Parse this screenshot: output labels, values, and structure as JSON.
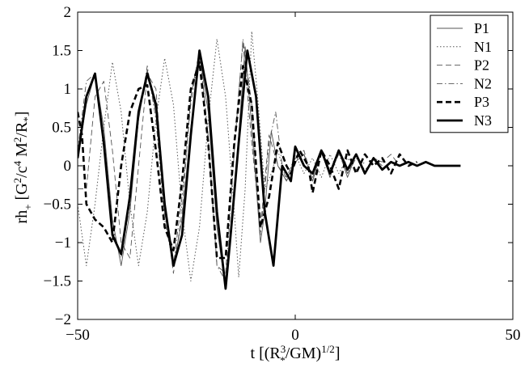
{
  "chart_data": {
    "type": "line",
    "xlabel": "t [(R*^3/GM)^{1/2}]",
    "ylabel": "rh+ [G^2/c^4 M^2/R*]",
    "xlim": [
      -50,
      50
    ],
    "ylim": [
      -2,
      2
    ],
    "x_ticks": [
      -50,
      0,
      50
    ],
    "y_ticks": [
      -2,
      -1.5,
      -1,
      -0.5,
      0,
      0.5,
      1,
      1.5,
      2
    ],
    "x_tick_labels": [
      "−50",
      "0",
      "50"
    ],
    "y_tick_labels": [
      "−2",
      "−1.5",
      "−1",
      "−0.5",
      "0",
      "0.5",
      "1",
      "1.5",
      "2"
    ],
    "grid": false,
    "legend_position": "top-right",
    "series": [
      {
        "name": "P1",
        "style": "thin-solid",
        "points": [
          [
            -50,
            0.1
          ],
          [
            -48,
            0.8
          ],
          [
            -46,
            1.2
          ],
          [
            -44,
            0.5
          ],
          [
            -42,
            -0.7
          ],
          [
            -40,
            -1.3
          ],
          [
            -38,
            -0.6
          ],
          [
            -36,
            0.6
          ],
          [
            -34,
            1.25
          ],
          [
            -32,
            0.7
          ],
          [
            -30,
            -0.6
          ],
          [
            -28,
            -1.3
          ],
          [
            -26,
            -0.7
          ],
          [
            -24,
            0.5
          ],
          [
            -22,
            1.45
          ],
          [
            -20,
            0.7
          ],
          [
            -18,
            -0.8
          ],
          [
            -16,
            -1.6
          ],
          [
            -15,
            -1.0
          ],
          [
            -13,
            0.4
          ],
          [
            -11.5,
            1.55
          ],
          [
            -10,
            0.5
          ],
          [
            -8,
            -1.0
          ],
          [
            -7,
            -0.6
          ],
          [
            -5.5,
            0.45
          ],
          [
            -4,
            0.0
          ],
          [
            -2,
            -0.2
          ],
          [
            0,
            0.05
          ],
          [
            2,
            0.15
          ],
          [
            4,
            -0.2
          ],
          [
            6,
            0.2
          ],
          [
            8,
            -0.15
          ],
          [
            10,
            0.2
          ],
          [
            12,
            -0.15
          ],
          [
            14,
            0.15
          ],
          [
            16,
            -0.1
          ],
          [
            18,
            0.1
          ],
          [
            20,
            0.0
          ]
        ]
      },
      {
        "name": "N1",
        "style": "dotted",
        "points": [
          [
            -50,
            -0.5
          ],
          [
            -48,
            -1.3
          ],
          [
            -46,
            -0.5
          ],
          [
            -44,
            0.5
          ],
          [
            -42,
            1.35
          ],
          [
            -40,
            0.7
          ],
          [
            -38,
            -0.5
          ],
          [
            -36,
            -1.3
          ],
          [
            -34,
            -0.6
          ],
          [
            -32,
            0.6
          ],
          [
            -30,
            1.4
          ],
          [
            -28,
            0.8
          ],
          [
            -26,
            -0.6
          ],
          [
            -24,
            -1.5
          ],
          [
            -22,
            -0.8
          ],
          [
            -20,
            0.6
          ],
          [
            -18,
            1.65
          ],
          [
            -16,
            0.9
          ],
          [
            -14,
            -0.6
          ],
          [
            -13,
            -1.45
          ],
          [
            -11.5,
            -0.3
          ],
          [
            -10,
            1.75
          ],
          [
            -8.5,
            0.8
          ],
          [
            -7,
            -0.3
          ],
          [
            -5.5,
            -0.1
          ],
          [
            -4,
            0.2
          ],
          [
            -2,
            -0.2
          ],
          [
            0,
            0.15
          ],
          [
            2,
            -0.1
          ],
          [
            4,
            0.1
          ],
          [
            6,
            -0.15
          ],
          [
            8,
            0.15
          ],
          [
            10,
            -0.1
          ],
          [
            12,
            0.1
          ],
          [
            14,
            -0.05
          ],
          [
            16,
            0.05
          ]
        ]
      },
      {
        "name": "P2",
        "style": "dashed",
        "points": [
          [
            -50,
            -0.3
          ],
          [
            -48,
            -0.3
          ],
          [
            -46,
            0.9
          ],
          [
            -44,
            1.1
          ],
          [
            -42,
            0.2
          ],
          [
            -40,
            -1.0
          ],
          [
            -38,
            -1.2
          ],
          [
            -36,
            0.0
          ],
          [
            -34,
            1.2
          ],
          [
            -32,
            1.0
          ],
          [
            -30,
            -0.5
          ],
          [
            -28,
            -1.4
          ],
          [
            -26,
            -0.6
          ],
          [
            -24,
            0.9
          ],
          [
            -22,
            1.5
          ],
          [
            -20,
            0.3
          ],
          [
            -18,
            -1.3
          ],
          [
            -16,
            -1.4
          ],
          [
            -14,
            0.3
          ],
          [
            -12,
            1.6
          ],
          [
            -10,
            0.3
          ],
          [
            -8,
            -0.8
          ],
          [
            -6,
            0.4
          ],
          [
            -4,
            0.0
          ],
          [
            -2,
            -0.15
          ],
          [
            0,
            0.1
          ],
          [
            2,
            0.2
          ],
          [
            4,
            -0.2
          ],
          [
            6,
            0.2
          ],
          [
            8,
            -0.15
          ],
          [
            10,
            0.2
          ],
          [
            12,
            -0.1
          ],
          [
            14,
            0.15
          ],
          [
            16,
            -0.1
          ],
          [
            18,
            0.1
          ],
          [
            20,
            0.05
          ],
          [
            22,
            0.15
          ],
          [
            24,
            0.0
          ],
          [
            26,
            0.05
          ]
        ]
      },
      {
        "name": "N2",
        "style": "dash-dot",
        "points": [
          [
            -50,
            0.2
          ],
          [
            -48,
            1.1
          ],
          [
            -46,
            1.2
          ],
          [
            -44,
            0.3
          ],
          [
            -42,
            -0.8
          ],
          [
            -40,
            -1.2
          ],
          [
            -38,
            -0.5
          ],
          [
            -36,
            0.6
          ],
          [
            -34,
            1.3
          ],
          [
            -32,
            0.6
          ],
          [
            -30,
            -0.7
          ],
          [
            -28,
            -1.3
          ],
          [
            -26,
            -0.4
          ],
          [
            -24,
            0.8
          ],
          [
            -22,
            1.5
          ],
          [
            -20,
            0.4
          ],
          [
            -18,
            -1.3
          ],
          [
            -16,
            -1.5
          ],
          [
            -14,
            0.2
          ],
          [
            -12,
            1.65
          ],
          [
            -10,
            0.8
          ],
          [
            -8,
            -0.9
          ],
          [
            -6,
            0.3
          ],
          [
            -4.5,
            0.7
          ],
          [
            -3,
            0.0
          ],
          [
            -1,
            -0.2
          ],
          [
            0,
            0.1
          ],
          [
            2,
            0.15
          ],
          [
            4,
            -0.15
          ],
          [
            6,
            0.2
          ],
          [
            8,
            -0.1
          ],
          [
            10,
            0.15
          ],
          [
            12,
            -0.1
          ],
          [
            14,
            0.1
          ],
          [
            16,
            -0.05
          ],
          [
            18,
            0.05
          ]
        ]
      },
      {
        "name": "P3",
        "style": "thick-dashed",
        "points": [
          [
            -50,
            0.7
          ],
          [
            -49,
            0.4
          ],
          [
            -48,
            -0.5
          ],
          [
            -46,
            -0.7
          ],
          [
            -44,
            -0.8
          ],
          [
            -42,
            -1.0
          ],
          [
            -40,
            0.0
          ],
          [
            -38,
            0.7
          ],
          [
            -36,
            1.0
          ],
          [
            -34,
            1.05
          ],
          [
            -32,
            0.2
          ],
          [
            -30,
            -0.8
          ],
          [
            -28,
            -1.1
          ],
          [
            -26,
            -0.2
          ],
          [
            -24,
            1.0
          ],
          [
            -22,
            1.35
          ],
          [
            -20,
            0.3
          ],
          [
            -18,
            -1.2
          ],
          [
            -16,
            -1.2
          ],
          [
            -14,
            0.3
          ],
          [
            -12,
            1.3
          ],
          [
            -10,
            0.8
          ],
          [
            -8,
            -0.8
          ],
          [
            -6,
            -0.4
          ],
          [
            -4,
            0.3
          ],
          [
            -2,
            0.0
          ],
          [
            -1,
            -0.1
          ],
          [
            1,
            0.2
          ],
          [
            3,
            0.0
          ],
          [
            4,
            -0.35
          ],
          [
            6,
            0.2
          ],
          [
            8,
            0.0
          ],
          [
            10,
            -0.3
          ],
          [
            12,
            0.2
          ],
          [
            14,
            -0.1
          ],
          [
            16,
            0.15
          ],
          [
            18,
            0.0
          ],
          [
            20,
            0.1
          ],
          [
            22,
            -0.1
          ],
          [
            24,
            0.15
          ],
          [
            26,
            0.0
          ],
          [
            28,
            0.05
          ]
        ]
      },
      {
        "name": "N3",
        "style": "thick-solid",
        "points": [
          [
            -50,
            0.1
          ],
          [
            -48,
            0.9
          ],
          [
            -46,
            1.2
          ],
          [
            -44,
            0.3
          ],
          [
            -42,
            -0.9
          ],
          [
            -40,
            -1.15
          ],
          [
            -38,
            -0.4
          ],
          [
            -36,
            0.7
          ],
          [
            -34,
            1.2
          ],
          [
            -32,
            0.8
          ],
          [
            -30,
            -0.5
          ],
          [
            -28,
            -1.3
          ],
          [
            -26,
            -0.9
          ],
          [
            -24,
            0.4
          ],
          [
            -22,
            1.5
          ],
          [
            -20,
            0.9
          ],
          [
            -18,
            -0.6
          ],
          [
            -16,
            -1.6
          ],
          [
            -15,
            -1.0
          ],
          [
            -13,
            0.3
          ],
          [
            -11,
            1.5
          ],
          [
            -9,
            0.9
          ],
          [
            -7,
            -0.6
          ],
          [
            -5,
            -1.3
          ],
          [
            -3,
            0.0
          ],
          [
            -1,
            -0.2
          ],
          [
            0,
            0.25
          ],
          [
            2,
            0.0
          ],
          [
            4,
            -0.1
          ],
          [
            6,
            0.2
          ],
          [
            8,
            -0.1
          ],
          [
            10,
            0.2
          ],
          [
            12,
            -0.05
          ],
          [
            14,
            0.15
          ],
          [
            16,
            -0.1
          ],
          [
            18,
            0.1
          ],
          [
            20,
            -0.05
          ],
          [
            22,
            0.05
          ],
          [
            24,
            0.0
          ],
          [
            26,
            0.05
          ],
          [
            28,
            0.0
          ],
          [
            30,
            0.05
          ],
          [
            32,
            0.0
          ],
          [
            34,
            0.0
          ],
          [
            36,
            0.0
          ],
          [
            38,
            0.0
          ]
        ]
      }
    ]
  }
}
